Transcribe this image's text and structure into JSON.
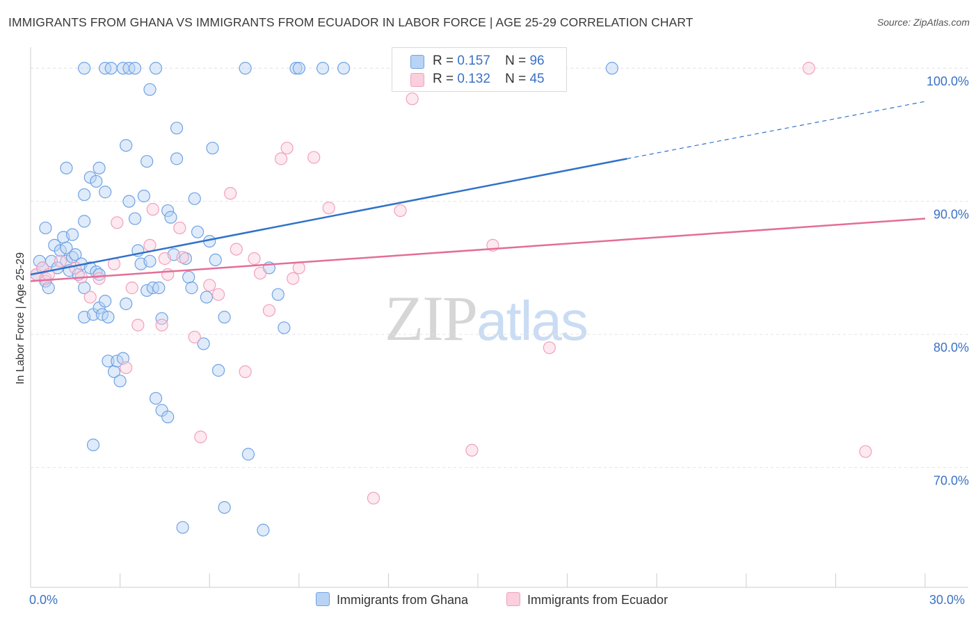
{
  "header": {
    "title": "IMMIGRANTS FROM GHANA VS IMMIGRANTS FROM ECUADOR IN LABOR FORCE | AGE 25-29 CORRELATION CHART",
    "source": "Source: ZipAtlas.com"
  },
  "watermark": {
    "zip": "ZIP",
    "atlas": "atlas"
  },
  "legend": {
    "rows": [
      {
        "r_label": "R =",
        "r_value": "0.157",
        "n_label": "N =",
        "n_value": "96"
      },
      {
        "r_label": "R =",
        "r_value": "0.132",
        "n_label": "N =",
        "n_value": "45"
      }
    ]
  },
  "colors": {
    "ghana": "#6fa2e3",
    "ecuador": "#f0a0bc",
    "ghana_line": "#2f72c9",
    "ecuador_line": "#e46d98",
    "axis_label": "#3a72c4"
  },
  "chart_data": {
    "type": "scatter",
    "title": "IMMIGRANTS FROM GHANA VS IMMIGRANTS FROM ECUADOR IN LABOR FORCE | AGE 25-29 CORRELATION CHART",
    "xlabel": "",
    "ylabel": "In Labor Force | Age 25-29",
    "xlim": [
      0,
      30
    ],
    "ylim": [
      61,
      101
    ],
    "x_tick_labels": [
      "0.0%",
      "30.0%"
    ],
    "y_ticks": [
      70,
      80,
      90,
      100
    ],
    "y_tick_labels": [
      "70.0%",
      "80.0%",
      "90.0%",
      "100.0%"
    ],
    "grid": true,
    "series": [
      {
        "name": "Immigrants from Ghana",
        "r": 0.157,
        "n": 96,
        "trend": {
          "x0": 0.0,
          "y0": 84.5,
          "x1": 20.0,
          "y1": 93.2,
          "dashed_to_x": 30.0,
          "dashed_to_y": 97.5
        },
        "points": [
          [
            0.2,
            84.5
          ],
          [
            0.3,
            85.5
          ],
          [
            0.4,
            85.0
          ],
          [
            0.5,
            84.0
          ],
          [
            0.6,
            83.5
          ],
          [
            0.7,
            85.5
          ],
          [
            0.8,
            86.7
          ],
          [
            0.9,
            85.0
          ],
          [
            1.0,
            86.3
          ],
          [
            1.1,
            87.3
          ],
          [
            1.2,
            85.5
          ],
          [
            1.3,
            84.8
          ],
          [
            1.4,
            85.8
          ],
          [
            1.5,
            86.0
          ],
          [
            1.6,
            84.5
          ],
          [
            1.7,
            85.3
          ],
          [
            1.8,
            83.5
          ],
          [
            2.0,
            85.0
          ],
          [
            2.2,
            84.7
          ],
          [
            2.3,
            84.5
          ],
          [
            0.5,
            88.0
          ],
          [
            1.2,
            86.5
          ],
          [
            1.4,
            87.5
          ],
          [
            1.8,
            88.5
          ],
          [
            1.8,
            81.3
          ],
          [
            2.1,
            81.5
          ],
          [
            2.3,
            82.0
          ],
          [
            2.4,
            81.5
          ],
          [
            2.5,
            82.5
          ],
          [
            2.6,
            81.3
          ],
          [
            1.2,
            92.5
          ],
          [
            1.8,
            90.5
          ],
          [
            2.0,
            91.8
          ],
          [
            2.2,
            91.5
          ],
          [
            2.3,
            92.5
          ],
          [
            2.5,
            90.7
          ],
          [
            2.6,
            78.0
          ],
          [
            2.8,
            77.2
          ],
          [
            2.9,
            78.0
          ],
          [
            3.0,
            76.5
          ],
          [
            3.1,
            78.2
          ],
          [
            2.1,
            71.7
          ],
          [
            3.2,
            94.2
          ],
          [
            3.3,
            90.0
          ],
          [
            3.5,
            88.7
          ],
          [
            3.6,
            86.3
          ],
          [
            3.7,
            85.3
          ],
          [
            3.8,
            90.4
          ],
          [
            3.9,
            83.3
          ],
          [
            4.0,
            85.5
          ],
          [
            4.1,
            83.5
          ],
          [
            3.2,
            82.3
          ],
          [
            3.9,
            93.0
          ],
          [
            4.2,
            75.2
          ],
          [
            4.3,
            83.5
          ],
          [
            4.4,
            81.2
          ],
          [
            4.4,
            74.3
          ],
          [
            4.6,
            73.8
          ],
          [
            4.6,
            89.3
          ],
          [
            4.7,
            88.8
          ],
          [
            4.8,
            86.0
          ],
          [
            4.9,
            95.5
          ],
          [
            4.9,
            93.2
          ],
          [
            5.2,
            85.7
          ],
          [
            5.3,
            84.3
          ],
          [
            5.4,
            83.5
          ],
          [
            5.5,
            90.2
          ],
          [
            5.6,
            87.7
          ],
          [
            5.8,
            79.3
          ],
          [
            5.9,
            82.8
          ],
          [
            6.0,
            87.0
          ],
          [
            6.1,
            94.0
          ],
          [
            6.3,
            77.3
          ],
          [
            6.5,
            81.3
          ],
          [
            6.2,
            85.6
          ],
          [
            7.3,
            71.0
          ],
          [
            7.8,
            65.3
          ],
          [
            8.0,
            85.0
          ],
          [
            8.3,
            83.0
          ],
          [
            8.5,
            80.5
          ],
          [
            1.8,
            100.0
          ],
          [
            2.5,
            100.0
          ],
          [
            2.7,
            100.0
          ],
          [
            3.1,
            100.0
          ],
          [
            3.3,
            100.0
          ],
          [
            3.5,
            100.0
          ],
          [
            4.2,
            100.0
          ],
          [
            6.5,
            67.0
          ],
          [
            7.2,
            100.0
          ],
          [
            8.9,
            100.0
          ],
          [
            9.0,
            100.0
          ],
          [
            9.8,
            100.0
          ],
          [
            10.5,
            100.0
          ],
          [
            19.5,
            100.0
          ],
          [
            4.0,
            98.4
          ],
          [
            5.1,
            65.5
          ]
        ]
      },
      {
        "name": "Immigrants from Ecuador",
        "r": 0.132,
        "n": 45,
        "trend": {
          "x0": 0.0,
          "y0": 84.0,
          "x1": 30.0,
          "y1": 88.7
        },
        "points": [
          [
            0.2,
            84.5
          ],
          [
            0.4,
            85.0
          ],
          [
            0.5,
            84.2
          ],
          [
            0.6,
            84.5
          ],
          [
            1.0,
            85.5
          ],
          [
            1.5,
            85.0
          ],
          [
            1.7,
            84.3
          ],
          [
            2.0,
            82.8
          ],
          [
            2.3,
            84.2
          ],
          [
            2.8,
            85.3
          ],
          [
            2.9,
            88.4
          ],
          [
            3.2,
            77.5
          ],
          [
            3.4,
            83.5
          ],
          [
            3.6,
            80.7
          ],
          [
            4.0,
            86.7
          ],
          [
            4.1,
            89.4
          ],
          [
            4.4,
            80.7
          ],
          [
            4.5,
            85.7
          ],
          [
            4.6,
            84.5
          ],
          [
            5.0,
            88.0
          ],
          [
            5.1,
            85.8
          ],
          [
            5.5,
            79.8
          ],
          [
            5.7,
            72.3
          ],
          [
            6.0,
            83.7
          ],
          [
            6.3,
            83.0
          ],
          [
            6.7,
            90.6
          ],
          [
            6.9,
            86.4
          ],
          [
            7.2,
            77.2
          ],
          [
            7.5,
            85.7
          ],
          [
            7.7,
            84.6
          ],
          [
            8.0,
            81.8
          ],
          [
            8.4,
            93.2
          ],
          [
            8.6,
            94.0
          ],
          [
            8.8,
            84.2
          ],
          [
            9.0,
            85.0
          ],
          [
            9.5,
            93.3
          ],
          [
            10.0,
            89.5
          ],
          [
            11.5,
            67.7
          ],
          [
            12.4,
            89.3
          ],
          [
            12.8,
            97.7
          ],
          [
            14.8,
            71.3
          ],
          [
            15.5,
            86.7
          ],
          [
            17.4,
            79.0
          ],
          [
            26.1,
            100.0
          ],
          [
            28.0,
            71.2
          ]
        ]
      }
    ]
  },
  "bottom_legend": {
    "items": [
      {
        "label": "Immigrants from Ghana"
      },
      {
        "label": "Immigrants from Ecuador"
      }
    ]
  }
}
